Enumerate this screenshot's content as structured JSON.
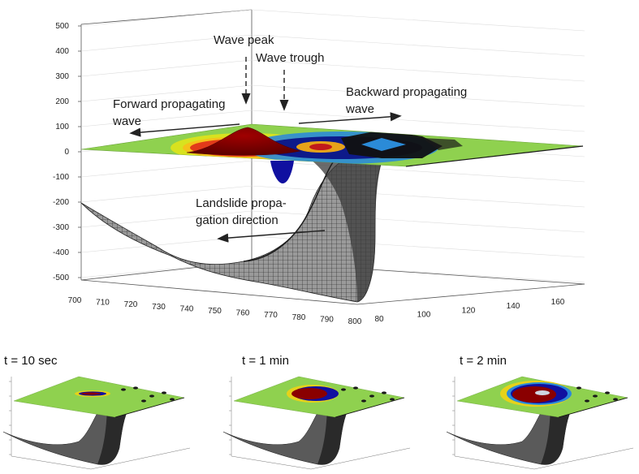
{
  "annotations": {
    "wave_peak": "Wave peak",
    "wave_trough": "Wave trough",
    "forward_line1": "Forward propagating",
    "forward_line2": "wave",
    "backward_line1": "Backward propagating",
    "backward_line2": "wave",
    "landslide_line1": "Landslide propa-",
    "landslide_line2": "gation direction"
  },
  "axes": {
    "z_ticks": [
      "500",
      "400",
      "300",
      "200",
      "100",
      "0",
      "-100",
      "-200",
      "-300",
      "-400",
      "-500"
    ],
    "x_ticks": [
      "700",
      "710",
      "720",
      "730",
      "740",
      "750",
      "760",
      "770",
      "780",
      "790",
      "800"
    ],
    "y_ticks": [
      "80",
      "100",
      "120",
      "140",
      "160"
    ]
  },
  "snapshots": [
    {
      "title": "t = 10 sec",
      "phase": 0
    },
    {
      "title": "t = 1 min",
      "phase": 1
    },
    {
      "title": "t = 2 min",
      "phase": 2
    }
  ],
  "colors": {
    "sea_surface": "#8fd14f",
    "wave_peak": "#7a0000",
    "wave_trough": "#1010a0",
    "slope_mesh": "#2a2a2a"
  }
}
